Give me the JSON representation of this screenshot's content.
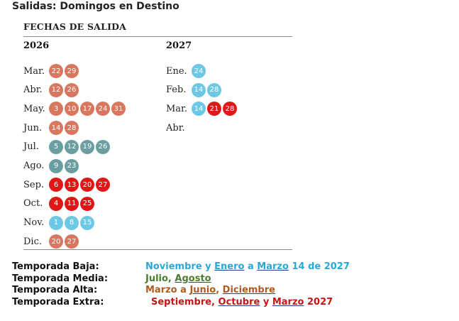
{
  "title": "Salidas: Domingos en Destino",
  "calendar": {
    "header": "FECHAS DE SALIDA",
    "colors": {
      "alta": "#d9765e",
      "media": "#6b9ea0",
      "extra": "#e01717",
      "baja": "#6cc8e4"
    },
    "years": [
      {
        "label": "2026",
        "months": [
          {
            "name": "Mar.",
            "days": [
              {
                "d": "22",
                "season": "alta"
              },
              {
                "d": "29",
                "season": "alta"
              }
            ]
          },
          {
            "name": "Abr.",
            "days": [
              {
                "d": "12",
                "season": "alta"
              },
              {
                "d": "26",
                "season": "alta"
              }
            ]
          },
          {
            "name": "May.",
            "days": [
              {
                "d": "3",
                "season": "alta"
              },
              {
                "d": "10",
                "season": "alta"
              },
              {
                "d": "17",
                "season": "alta"
              },
              {
                "d": "24",
                "season": "alta"
              },
              {
                "d": "31",
                "season": "alta"
              }
            ]
          },
          {
            "name": "Jun.",
            "days": [
              {
                "d": "14",
                "season": "alta"
              },
              {
                "d": "28",
                "season": "alta"
              }
            ]
          },
          {
            "name": "Jul.",
            "days": [
              {
                "d": "5",
                "season": "media"
              },
              {
                "d": "12",
                "season": "media"
              },
              {
                "d": "19",
                "season": "media"
              },
              {
                "d": "26",
                "season": "media"
              }
            ]
          },
          {
            "name": "Ago.",
            "days": [
              {
                "d": "9",
                "season": "media"
              },
              {
                "d": "23",
                "season": "media"
              }
            ]
          },
          {
            "name": "Sep.",
            "days": [
              {
                "d": "6",
                "season": "extra"
              },
              {
                "d": "13",
                "season": "extra"
              },
              {
                "d": "20",
                "season": "extra"
              },
              {
                "d": "27",
                "season": "extra"
              }
            ]
          },
          {
            "name": "Oct.",
            "days": [
              {
                "d": "4",
                "season": "extra"
              },
              {
                "d": "11",
                "season": "extra"
              },
              {
                "d": "25",
                "season": "extra"
              }
            ]
          },
          {
            "name": "Nov.",
            "days": [
              {
                "d": "1",
                "season": "baja"
              },
              {
                "d": "8",
                "season": "baja"
              },
              {
                "d": "15",
                "season": "baja"
              }
            ]
          },
          {
            "name": "Dic.",
            "days": [
              {
                "d": "20",
                "season": "alta"
              },
              {
                "d": "27",
                "season": "alta"
              }
            ]
          }
        ]
      },
      {
        "label": "2027",
        "months": [
          {
            "name": "Ene.",
            "days": [
              {
                "d": "24",
                "season": "baja"
              }
            ]
          },
          {
            "name": "Feb.",
            "days": [
              {
                "d": "14",
                "season": "baja"
              },
              {
                "d": "28",
                "season": "baja"
              }
            ]
          },
          {
            "name": "Mar.",
            "days": [
              {
                "d": "14",
                "season": "baja"
              },
              {
                "d": "21",
                "season": "extra"
              },
              {
                "d": "28",
                "season": "extra"
              }
            ]
          },
          {
            "name": "Abr.",
            "days": []
          }
        ]
      }
    ]
  },
  "legend": {
    "baja": {
      "label": "Temporada Baja:",
      "parts": [
        "Noviembre y ",
        "Enero",
        " a ",
        "Marzo",
        " 14 de 2027"
      ]
    },
    "media": {
      "label": "Temporada Media:",
      "parts": [
        "Julio, ",
        "Agosto"
      ]
    },
    "alta": {
      "label": "Temporada Alta:",
      "parts": [
        "Marzo a ",
        "Junio",
        ", ",
        "Diciembre"
      ]
    },
    "extra": {
      "label": "Temporada Extra:",
      "parts": [
        "Septiembre, ",
        "Octubre",
        " y ",
        "Marzo",
        " 2027"
      ]
    }
  }
}
